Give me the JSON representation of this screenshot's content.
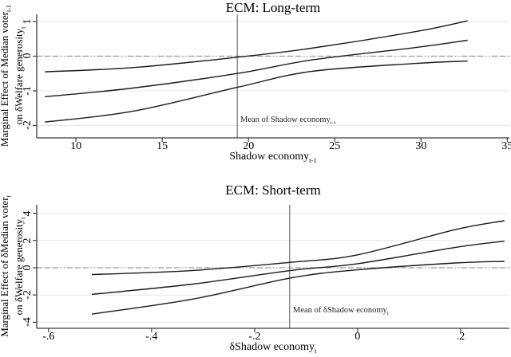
{
  "colors": {
    "line": "#1a1a1a",
    "grid": "#e7e7e7",
    "zero_line": "#9a9a9a",
    "mean_line": "#5a5a5a",
    "axis": "#3a3a3a",
    "text": "#000000",
    "background": "#ffffff"
  },
  "chart_data": [
    {
      "type": "line",
      "title": "ECM: Long-term",
      "xlabel": {
        "text": "Shadow economy",
        "sub": "t-1"
      },
      "ylabel_line1": {
        "text": "Marginal Effect of Median voter",
        "sub": "t-1"
      },
      "ylabel_line2": {
        "text": "on δWelfare generosity",
        "sub": "t"
      },
      "mean_line": {
        "x": 19.35,
        "label": {
          "text": "Mean of Shadow economy",
          "sub": "t-1"
        }
      },
      "zero_ref_y": 0,
      "xlim": [
        7.73,
        35.12
      ],
      "ylim": [
        -2.357,
        1.207
      ],
      "grid": true,
      "legend": false,
      "xticks": {
        "values": [
          10,
          15,
          20,
          25,
          30,
          35
        ],
        "labels": [
          "10",
          "15",
          "20",
          "25",
          "30",
          "35"
        ]
      },
      "yticks": {
        "values": [
          1,
          0,
          -1,
          -2
        ],
        "labels": [
          "1",
          "0",
          "-1",
          "-2"
        ]
      },
      "series": [
        {
          "name": "upper-95-ci",
          "points": [
            [
              8.2,
              -0.45
            ],
            [
              13.3,
              -0.33
            ],
            [
              19.35,
              -0.03
            ],
            [
              23.65,
              0.23
            ],
            [
              29.7,
              0.71
            ],
            [
              32.7,
              1.02
            ]
          ]
        },
        {
          "name": "point-estimate",
          "points": [
            [
              8.2,
              -1.17
            ],
            [
              13.3,
              -0.92
            ],
            [
              19.35,
              -0.5
            ],
            [
              23.65,
              -0.11
            ],
            [
              29.7,
              0.25
            ],
            [
              32.7,
              0.46
            ]
          ]
        },
        {
          "name": "lower-95-ci",
          "points": [
            [
              8.2,
              -1.9
            ],
            [
              13.3,
              -1.59
            ],
            [
              19.35,
              -0.9
            ],
            [
              23.65,
              -0.44
            ],
            [
              29.7,
              -0.21
            ],
            [
              32.7,
              -0.14
            ]
          ]
        }
      ]
    },
    {
      "type": "line",
      "title": "ECM: Short-term",
      "xlabel": {
        "text": "δShadow economy",
        "sub": "t"
      },
      "ylabel_line1": {
        "text": "Marginal Effect of δMedian voter",
        "sub": "t"
      },
      "ylabel_line2": {
        "text": "on δWelfare generosity",
        "sub": "t"
      },
      "mean_line": {
        "x": -0.132,
        "label": {
          "text": "Mean of δShadow economy",
          "sub": "t"
        }
      },
      "zero_ref_y": 0,
      "xlim": [
        -0.623,
        0.2946
      ],
      "ylim": [
        -4.444,
        4.62
      ],
      "grid": true,
      "legend": false,
      "xticks": {
        "values": [
          -0.6,
          -0.4,
          -0.2,
          0,
          0.2
        ],
        "labels": [
          "-.6",
          "-.4",
          "-.2",
          "0",
          ".2"
        ]
      },
      "yticks": {
        "values": [
          4,
          2,
          0,
          -2,
          -4
        ],
        "labels": [
          "4",
          "2",
          "0",
          "-2",
          "-4"
        ]
      },
      "series": [
        {
          "name": "upper-95-ci",
          "points": [
            [
              -0.516,
              -0.5
            ],
            [
              -0.32,
              -0.2
            ],
            [
              -0.13,
              0.4
            ],
            [
              0.0,
              0.95
            ],
            [
              0.19,
              2.8
            ],
            [
              0.285,
              3.45
            ]
          ]
        },
        {
          "name": "point-estimate",
          "points": [
            [
              -0.516,
              -1.95
            ],
            [
              -0.32,
              -1.2
            ],
            [
              -0.13,
              -0.2
            ],
            [
              0.0,
              0.3
            ],
            [
              0.19,
              1.5
            ],
            [
              0.285,
              1.95
            ]
          ]
        },
        {
          "name": "lower-95-ci",
          "points": [
            [
              -0.516,
              -3.4
            ],
            [
              -0.32,
              -2.3
            ],
            [
              -0.13,
              -0.75
            ],
            [
              0.0,
              -0.15
            ],
            [
              0.19,
              0.35
            ],
            [
              0.285,
              0.47
            ]
          ]
        }
      ]
    }
  ]
}
